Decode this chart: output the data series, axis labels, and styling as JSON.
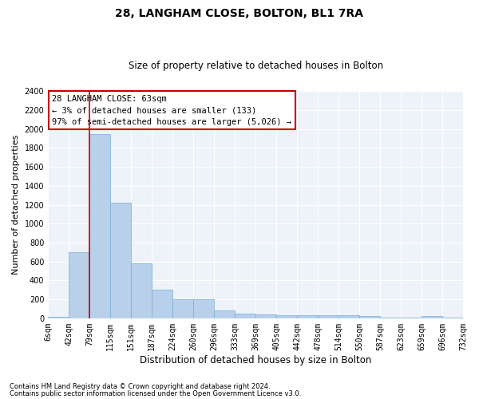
{
  "title1": "28, LANGHAM CLOSE, BOLTON, BL1 7RA",
  "title2": "Size of property relative to detached houses in Bolton",
  "xlabel": "Distribution of detached houses by size in Bolton",
  "ylabel": "Number of detached properties",
  "footnote1": "Contains HM Land Registry data © Crown copyright and database right 2024.",
  "footnote2": "Contains public sector information licensed under the Open Government Licence v3.0.",
  "annotation_line1": "28 LANGHAM CLOSE: 63sqm",
  "annotation_line2": "← 3% of detached houses are smaller (133)",
  "annotation_line3": "97% of semi-detached houses are larger (5,026) →",
  "bar_values": [
    15,
    700,
    1950,
    1225,
    580,
    305,
    200,
    200,
    85,
    45,
    40,
    35,
    35,
    30,
    30,
    20,
    10,
    5,
    20,
    5
  ],
  "bar_labels": [
    "6sqm",
    "42sqm",
    "79sqm",
    "115sqm",
    "151sqm",
    "187sqm",
    "224sqm",
    "260sqm",
    "296sqm",
    "333sqm",
    "369sqm",
    "405sqm",
    "442sqm",
    "478sqm",
    "514sqm",
    "550sqm",
    "587sqm",
    "623sqm",
    "659sqm",
    "696sqm",
    "732sqm"
  ],
  "bar_color": "#b8d0ea",
  "bar_edge_color": "#7aadd4",
  "vline_x": 2.0,
  "vline_color": "#cc0000",
  "ylim_max": 2400,
  "ytick_step": 200,
  "bg_color": "#eef2f9",
  "grid_color": "#ffffff",
  "annotation_box_edgecolor": "#cc0000",
  "title1_fontsize": 10,
  "title2_fontsize": 8.5,
  "xlabel_fontsize": 8.5,
  "ylabel_fontsize": 8,
  "tick_fontsize": 7,
  "annot_fontsize": 7.5,
  "footnote_fontsize": 6
}
